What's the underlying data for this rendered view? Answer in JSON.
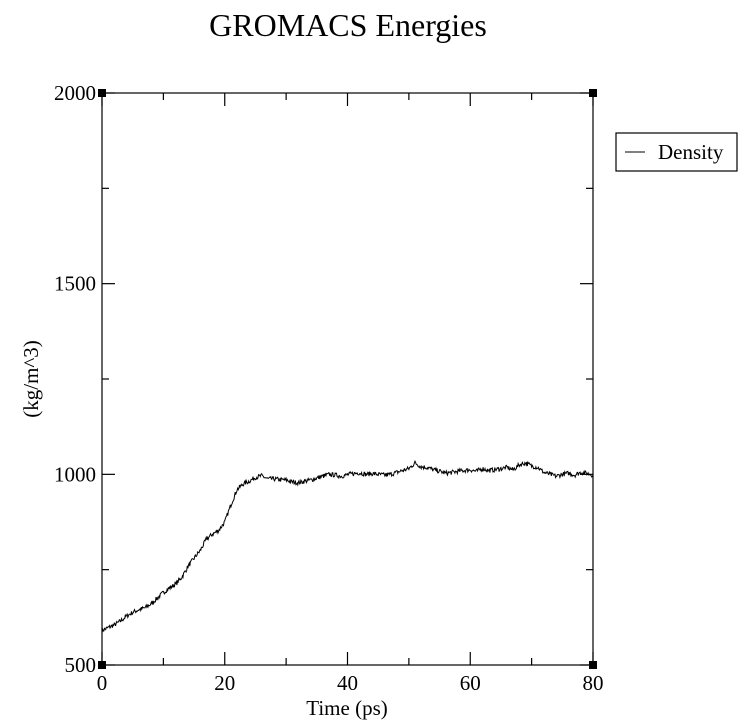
{
  "chart_data": {
    "type": "line",
    "title": "GROMACS Energies",
    "xlabel": "Time (ps)",
    "ylabel": "(kg/m^3)",
    "xlim": [
      0,
      80
    ],
    "ylim": [
      500,
      2000
    ],
    "x_ticks": [
      0,
      20,
      40,
      60,
      80
    ],
    "y_ticks": [
      500,
      1000,
      1500,
      2000
    ],
    "x_tick_labels": [
      "0",
      "20",
      "40",
      "60",
      "80"
    ],
    "y_tick_labels": [
      "500",
      "1000",
      "1500",
      "2000"
    ],
    "grid": false,
    "legend_position": "right",
    "series": [
      {
        "name": "Density",
        "color": "#000000",
        "x": [
          0,
          1,
          2,
          3,
          4,
          5,
          6,
          7,
          8,
          9,
          10,
          11,
          12,
          13,
          14,
          15,
          16,
          17,
          18,
          19,
          20,
          21,
          22,
          23,
          24,
          25,
          26,
          27,
          28,
          29,
          30,
          31,
          32,
          33,
          34,
          35,
          36,
          37,
          38,
          39,
          40,
          41,
          42,
          43,
          44,
          45,
          46,
          47,
          48,
          49,
          50,
          51,
          52,
          53,
          54,
          55,
          56,
          57,
          58,
          59,
          60,
          61,
          62,
          63,
          64,
          65,
          66,
          67,
          68,
          69,
          70,
          71,
          72,
          73,
          74,
          75,
          76,
          77,
          78,
          79,
          80
        ],
        "y": [
          590,
          598,
          605,
          615,
          628,
          638,
          645,
          650,
          660,
          675,
          690,
          702,
          712,
          730,
          758,
          780,
          800,
          830,
          843,
          853,
          875,
          920,
          960,
          975,
          982,
          992,
          996,
          988,
          988,
          986,
          985,
          980,
          978,
          982,
          985,
          990,
          995,
          1000,
          998,
          995,
          999,
          1002,
          1004,
          1000,
          1002,
          1000,
          998,
          1000,
          1005,
          1010,
          1015,
          1030,
          1020,
          1018,
          1012,
          1008,
          1003,
          1005,
          1008,
          1010,
          1012,
          1008,
          1015,
          1010,
          1012,
          1015,
          1018,
          1012,
          1025,
          1030,
          1022,
          1018,
          1005,
          1000,
          995,
          1000,
          1003,
          998,
          1005,
          1003,
          998
        ]
      }
    ]
  }
}
